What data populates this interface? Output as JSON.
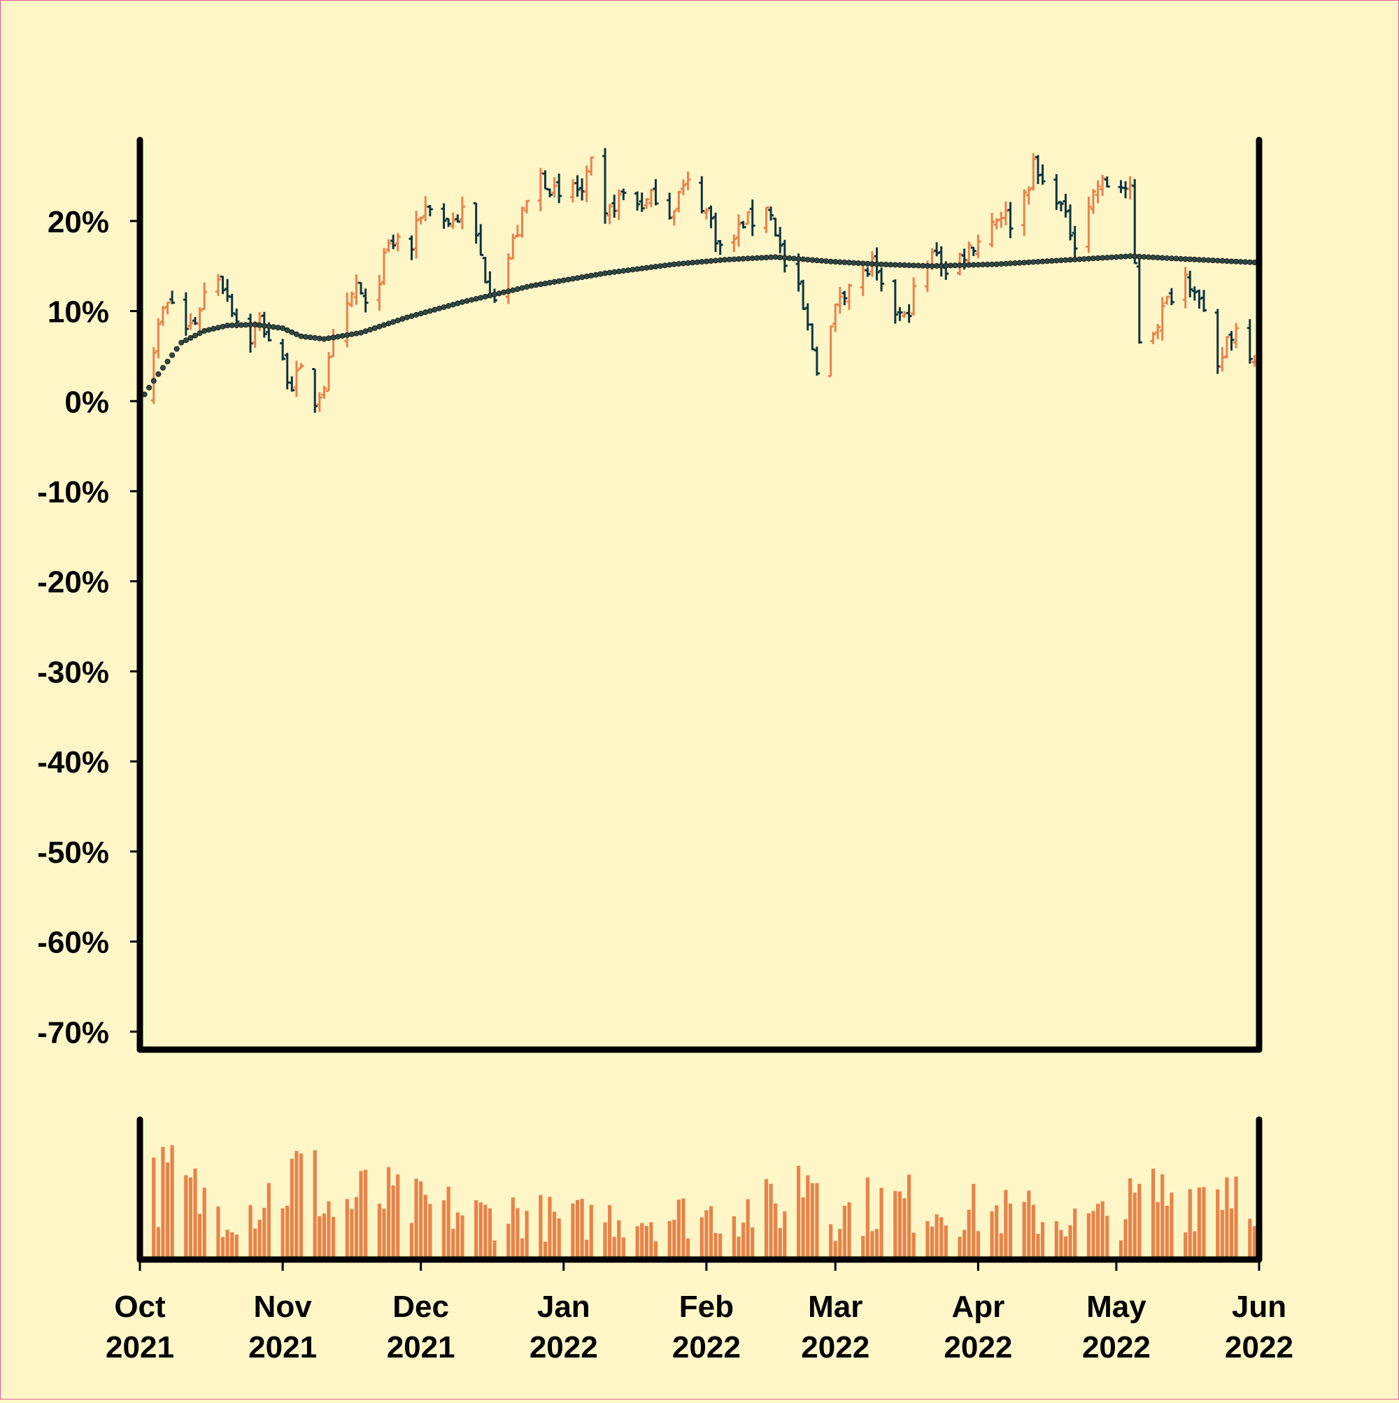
{
  "chart_data": {
    "type": "ohlc",
    "colors": {
      "background": "#fff6c8",
      "up": "#e8834a",
      "down": "#0d3440",
      "volume": "#e8834a",
      "moving_average": "#2e4a47",
      "frame": "#000000"
    },
    "price_axis": {
      "ylim": [
        -72,
        29
      ],
      "ticks": [
        20,
        10,
        0,
        -10,
        -20,
        -30,
        -40,
        -50,
        -60,
        -70
      ],
      "tick_labels": [
        "20%",
        "10%",
        "0%",
        "-10%",
        "-20%",
        "-30%",
        "-40%",
        "-50%",
        "-60%",
        "-70%"
      ]
    },
    "time_axis": {
      "xlim": [
        "2021-10-01",
        "2022-06-01"
      ],
      "ticks": [
        {
          "date": "2021-10-01",
          "month": "Oct",
          "year": "2021"
        },
        {
          "date": "2021-11-01",
          "month": "Nov",
          "year": "2021"
        },
        {
          "date": "2021-12-01",
          "month": "Dec",
          "year": "2021"
        },
        {
          "date": "2022-01-01",
          "month": "Jan",
          "year": "2022"
        },
        {
          "date": "2022-02-01",
          "month": "Feb",
          "year": "2022"
        },
        {
          "date": "2022-03-01",
          "month": "Mar",
          "year": "2022"
        },
        {
          "date": "2022-04-01",
          "month": "Apr",
          "year": "2022"
        },
        {
          "date": "2022-05-01",
          "month": "May",
          "year": "2022"
        },
        {
          "date": "2022-06-01",
          "month": "Jun",
          "year": "2022"
        }
      ]
    },
    "close_series": [
      [
        "2021-10-01",
        1
      ],
      [
        "2021-10-04",
        6
      ],
      [
        "2021-10-06",
        10
      ],
      [
        "2021-10-08",
        11
      ],
      [
        "2021-10-11",
        8
      ],
      [
        "2021-10-13",
        9
      ],
      [
        "2021-10-15",
        12
      ],
      [
        "2021-10-18",
        14
      ],
      [
        "2021-10-20",
        12
      ],
      [
        "2021-10-22",
        9
      ],
      [
        "2021-10-25",
        7
      ],
      [
        "2021-10-27",
        9
      ],
      [
        "2021-10-29",
        7
      ],
      [
        "2021-11-01",
        4
      ],
      [
        "2021-11-03",
        2
      ],
      [
        "2021-11-05",
        3
      ],
      [
        "2021-11-08",
        0
      ],
      [
        "2021-11-10",
        2
      ],
      [
        "2021-11-12",
        6
      ],
      [
        "2021-11-15",
        10
      ],
      [
        "2021-11-17",
        13
      ],
      [
        "2021-11-19",
        10
      ],
      [
        "2021-11-22",
        14
      ],
      [
        "2021-11-24",
        17
      ],
      [
        "2021-11-26",
        18
      ],
      [
        "2021-11-29",
        17
      ],
      [
        "2021-12-01",
        21
      ],
      [
        "2021-12-03",
        22
      ],
      [
        "2021-12-06",
        20
      ],
      [
        "2021-12-08",
        20
      ],
      [
        "2021-12-10",
        21
      ],
      [
        "2021-12-13",
        18
      ],
      [
        "2021-12-15",
        14
      ],
      [
        "2021-12-17",
        12
      ],
      [
        "2021-12-20",
        16
      ],
      [
        "2021-12-22",
        19
      ],
      [
        "2021-12-24",
        22
      ],
      [
        "2021-12-27",
        25
      ],
      [
        "2021-12-29",
        24
      ],
      [
        "2021-12-31",
        22
      ],
      [
        "2022-01-03",
        24
      ],
      [
        "2022-01-05",
        23
      ],
      [
        "2022-01-07",
        26
      ],
      [
        "2022-01-10",
        20
      ],
      [
        "2022-01-12",
        22
      ],
      [
        "2022-01-14",
        23
      ],
      [
        "2022-01-17",
        22
      ],
      [
        "2022-01-19",
        22
      ],
      [
        "2022-01-21",
        23
      ],
      [
        "2022-01-24",
        21
      ],
      [
        "2022-01-26",
        23
      ],
      [
        "2022-01-28",
        24
      ],
      [
        "2022-01-31",
        22
      ],
      [
        "2022-02-02",
        20
      ],
      [
        "2022-02-04",
        17
      ],
      [
        "2022-02-07",
        18
      ],
      [
        "2022-02-09",
        20
      ],
      [
        "2022-02-11",
        20
      ],
      [
        "2022-02-14",
        22
      ],
      [
        "2022-02-16",
        19
      ],
      [
        "2022-02-18",
        15
      ],
      [
        "2022-02-21",
        12
      ],
      [
        "2022-02-23",
        8
      ],
      [
        "2022-02-25",
        4
      ],
      [
        "2022-02-28",
        8
      ],
      [
        "2022-03-02",
        12
      ],
      [
        "2022-03-04",
        13
      ],
      [
        "2022-03-07",
        14
      ],
      [
        "2022-03-09",
        15
      ],
      [
        "2022-03-11",
        12
      ],
      [
        "2022-03-14",
        10
      ],
      [
        "2022-03-16",
        9
      ],
      [
        "2022-03-18",
        12
      ],
      [
        "2022-03-21",
        15
      ],
      [
        "2022-03-23",
        17
      ],
      [
        "2022-03-25",
        14
      ],
      [
        "2022-03-28",
        16
      ],
      [
        "2022-03-30",
        17
      ],
      [
        "2022-04-01",
        18
      ],
      [
        "2022-04-04",
        20
      ],
      [
        "2022-04-06",
        21
      ],
      [
        "2022-04-08",
        20
      ],
      [
        "2022-04-11",
        23
      ],
      [
        "2022-04-13",
        26
      ],
      [
        "2022-04-15",
        24
      ],
      [
        "2022-04-18",
        23
      ],
      [
        "2022-04-20",
        20
      ],
      [
        "2022-04-22",
        18
      ],
      [
        "2022-04-25",
        22
      ],
      [
        "2022-04-27",
        24
      ],
      [
        "2022-04-29",
        24
      ],
      [
        "2022-05-02",
        24
      ],
      [
        "2022-05-04",
        23
      ],
      [
        "2022-05-06",
        7
      ],
      [
        "2022-05-09",
        8
      ],
      [
        "2022-05-11",
        10
      ],
      [
        "2022-05-13",
        12
      ],
      [
        "2022-05-16",
        14
      ],
      [
        "2022-05-18",
        13
      ],
      [
        "2022-05-20",
        9
      ],
      [
        "2022-05-23",
        3
      ],
      [
        "2022-05-25",
        7
      ],
      [
        "2022-05-27",
        8
      ],
      [
        "2022-05-31",
        5
      ]
    ],
    "moving_average": [
      [
        "2021-10-01",
        0
      ],
      [
        "2021-10-05",
        3
      ],
      [
        "2021-10-10",
        6.5
      ],
      [
        "2021-10-15",
        7.8
      ],
      [
        "2021-10-20",
        8.4
      ],
      [
        "2021-10-26",
        8.5
      ],
      [
        "2021-11-01",
        8.1
      ],
      [
        "2021-11-05",
        7.2
      ],
      [
        "2021-11-10",
        6.9
      ],
      [
        "2021-11-18",
        7.6
      ],
      [
        "2021-11-28",
        9.3
      ],
      [
        "2021-12-10",
        11
      ],
      [
        "2021-12-25",
        12.8
      ],
      [
        "2022-01-10",
        14.2
      ],
      [
        "2022-01-25",
        15.2
      ],
      [
        "2022-02-05",
        15.7
      ],
      [
        "2022-02-16",
        16
      ],
      [
        "2022-02-28",
        15.5
      ],
      [
        "2022-03-10",
        15.2
      ],
      [
        "2022-03-22",
        15
      ],
      [
        "2022-04-05",
        15.2
      ],
      [
        "2022-04-18",
        15.6
      ],
      [
        "2022-05-01",
        16
      ],
      [
        "2022-05-04",
        16.1
      ],
      [
        "2022-05-15",
        15.8
      ],
      [
        "2022-05-31",
        15.4
      ]
    ],
    "volume_profile": [
      [
        "2021-10-01",
        55
      ],
      [
        "2021-10-08",
        62
      ],
      [
        "2021-10-16",
        45
      ],
      [
        "2021-10-24",
        40
      ],
      [
        "2021-11-01",
        58
      ],
      [
        "2021-11-06",
        72
      ],
      [
        "2021-11-12",
        38
      ],
      [
        "2021-11-20",
        52
      ],
      [
        "2021-11-28",
        42
      ],
      [
        "2021-12-06",
        40
      ],
      [
        "2021-12-14",
        35
      ],
      [
        "2021-12-22",
        38
      ],
      [
        "2022-01-01",
        30
      ],
      [
        "2022-01-10",
        35
      ],
      [
        "2022-01-20",
        34
      ],
      [
        "2022-02-01",
        36
      ],
      [
        "2022-02-10",
        40
      ],
      [
        "2022-02-18",
        42
      ],
      [
        "2022-02-24",
        78
      ],
      [
        "2022-03-01",
        35
      ],
      [
        "2022-03-10",
        45
      ],
      [
        "2022-03-20",
        44
      ],
      [
        "2022-04-01",
        38
      ],
      [
        "2022-04-12",
        36
      ],
      [
        "2022-04-22",
        30
      ],
      [
        "2022-05-01",
        34
      ],
      [
        "2022-05-08",
        52
      ],
      [
        "2022-05-16",
        50
      ],
      [
        "2022-05-24",
        66
      ],
      [
        "2022-05-31",
        60
      ]
    ]
  }
}
